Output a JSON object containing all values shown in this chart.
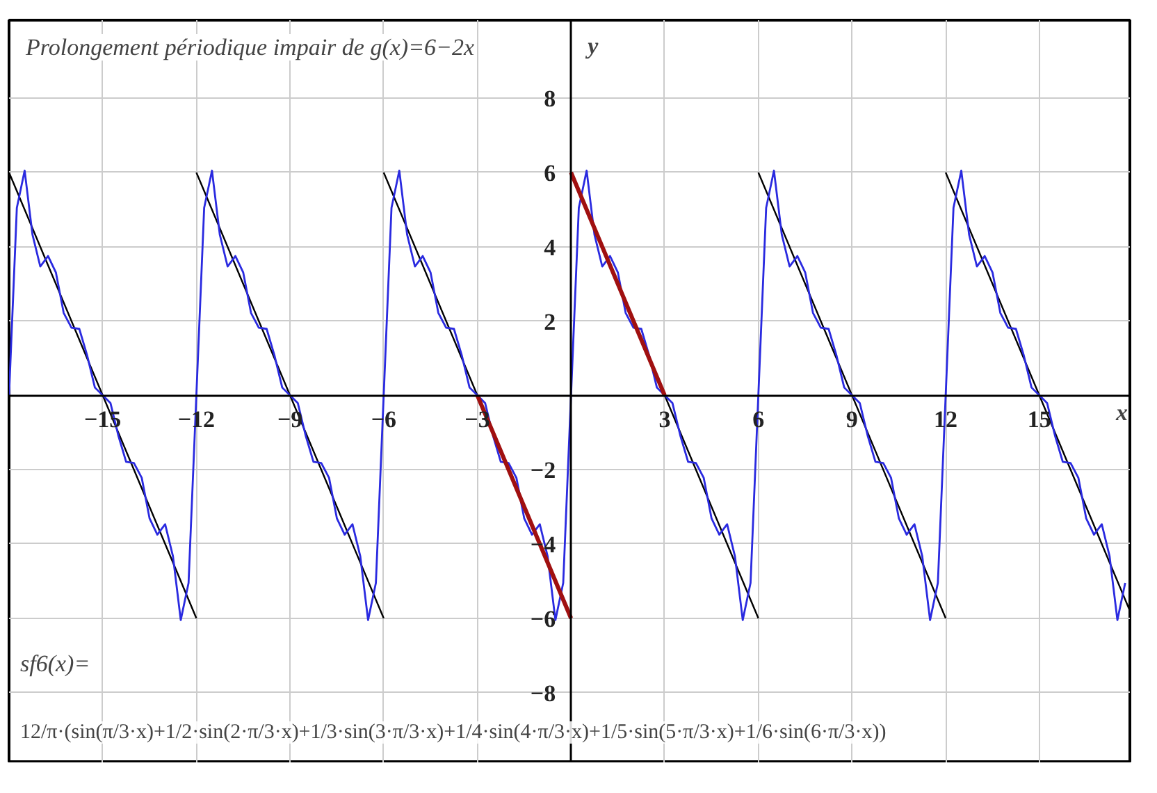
{
  "chart_data": {
    "type": "line",
    "title": "Prolongement périodique impair de g(x)=6−2x",
    "xlabel": "x",
    "ylabel": "y",
    "annotations": [
      "sf6(x)=",
      "12/π·(sin(π/3·x)+1/2·sin(2·π/3·x)+1/3·sin(3·π/3·x)+1/4·sin(4·π/3·x)+1/5·sin(5·π/3·x)+1/6·sin(6·π/3·x))"
    ],
    "xlim": [
      -18,
      17.9
    ],
    "ylim": [
      -9.9,
      10.1
    ],
    "xticks": [
      -15,
      -12,
      -9,
      -6,
      -3,
      3,
      6,
      9,
      12,
      15
    ],
    "yticks": [
      -8,
      -6,
      -4,
      -2,
      2,
      4,
      6,
      8
    ],
    "grid": true,
    "marker": "none",
    "line_style": "solid",
    "series": [
      {
        "color": "#000000",
        "x": [
          -18,
          -12,
          null,
          -12,
          -6,
          null,
          -6,
          0,
          null,
          0,
          6,
          null,
          6,
          12,
          null,
          12,
          17.9
        ],
        "values": [
          6,
          -6,
          null,
          6,
          -6,
          null,
          6,
          -6,
          null,
          6,
          -6,
          null,
          6,
          -6,
          null,
          6,
          -5.8
        ]
      },
      {
        "color": "#2a2ae0",
        "x": [
          -18,
          -17.75,
          -17.5,
          -17.25,
          -17,
          -16.75,
          -16.5,
          -16.25,
          -16,
          -15.75,
          -15.5,
          -15.25,
          -15,
          -14.75,
          -14.5,
          -14.25,
          -14,
          -13.75,
          -13.5,
          -13.25,
          -13,
          -12.75,
          -12.5,
          -12.25,
          -12,
          -11.75,
          -11.5,
          -11.25,
          -11,
          -10.75,
          -10.5,
          -10.25,
          -10,
          -9.75,
          -9.5,
          -9.25,
          -9,
          -8.75,
          -8.5,
          -8.25,
          -8,
          -7.75,
          -7.5,
          -7.25,
          -7,
          -6.75,
          -6.5,
          -6.25,
          -6,
          -5.75,
          -5.5,
          -5.25,
          -5,
          -4.75,
          -4.5,
          -4.25,
          -4,
          -3.75,
          -3.5,
          -3.25,
          -3,
          -2.75,
          -2.5,
          -2.25,
          -2,
          -1.75,
          -1.5,
          -1.25,
          -1,
          -0.75,
          -0.5,
          -0.25,
          0,
          0.25,
          0.5,
          0.75,
          1,
          1.25,
          1.5,
          1.75,
          2,
          2.25,
          2.5,
          2.75,
          3,
          3.25,
          3.5,
          3.75,
          4,
          4.25,
          4.5,
          4.75,
          5,
          5.25,
          5.5,
          5.75,
          6,
          6.25,
          6.5,
          6.75,
          7,
          7.25,
          7.5,
          7.75,
          8,
          8.25,
          8.5,
          8.75,
          9,
          9.25,
          9.5,
          9.75,
          10,
          10.25,
          10.5,
          10.75,
          11,
          11.25,
          11.5,
          11.75,
          12,
          12.25,
          12.5,
          12.75,
          13,
          13.25,
          13.5,
          13.75,
          14,
          14.25,
          14.5,
          14.75,
          15,
          15.25,
          15.5,
          15.75,
          16,
          16.25,
          16.5,
          16.75,
          17,
          17.25,
          17.5,
          17.75
        ],
        "values": [
          0,
          5.05,
          6.05,
          4.33,
          3.47,
          3.75,
          3.31,
          2.22,
          1.82,
          1.79,
          1.08,
          0.21,
          0,
          -0.21,
          -1.08,
          -1.79,
          -1.82,
          -2.22,
          -3.31,
          -3.75,
          -3.47,
          -4.33,
          -6.05,
          -5.05,
          0,
          5.05,
          6.05,
          4.33,
          3.47,
          3.75,
          3.31,
          2.22,
          1.82,
          1.79,
          1.08,
          0.21,
          0,
          -0.21,
          -1.08,
          -1.79,
          -1.82,
          -2.22,
          -3.31,
          -3.75,
          -3.47,
          -4.33,
          -6.05,
          -5.05,
          0,
          5.05,
          6.05,
          4.33,
          3.47,
          3.75,
          3.31,
          2.22,
          1.82,
          1.79,
          1.08,
          0.21,
          0,
          -0.21,
          -1.08,
          -1.79,
          -1.82,
          -2.22,
          -3.31,
          -3.75,
          -3.47,
          -4.33,
          -6.05,
          -5.05,
          0,
          5.05,
          6.05,
          4.33,
          3.47,
          3.75,
          3.31,
          2.22,
          1.82,
          1.79,
          1.08,
          0.21,
          0,
          -0.21,
          -1.08,
          -1.79,
          -1.82,
          -2.22,
          -3.31,
          -3.75,
          -3.47,
          -4.33,
          -6.05,
          -5.05,
          0,
          5.05,
          6.05,
          4.33,
          3.47,
          3.75,
          3.31,
          2.22,
          1.82,
          1.79,
          1.08,
          0.21,
          0,
          -0.21,
          -1.08,
          -1.79,
          -1.82,
          -2.22,
          -3.31,
          -3.75,
          -3.47,
          -4.33,
          -6.05,
          -5.05,
          0,
          5.05,
          6.05,
          4.33,
          3.47,
          3.75,
          3.31,
          2.22,
          1.82,
          1.79,
          1.08,
          0.21,
          0,
          -0.21,
          -1.08,
          -1.79,
          -1.82,
          -2.22,
          -3.31,
          -3.75,
          -3.47,
          -4.33,
          -6.05,
          -5.05
        ]
      },
      {
        "color": "#a01010",
        "x": [
          -3,
          0,
          null,
          0,
          3
        ],
        "values": [
          0,
          -6,
          null,
          6,
          0
        ]
      }
    ]
  }
}
